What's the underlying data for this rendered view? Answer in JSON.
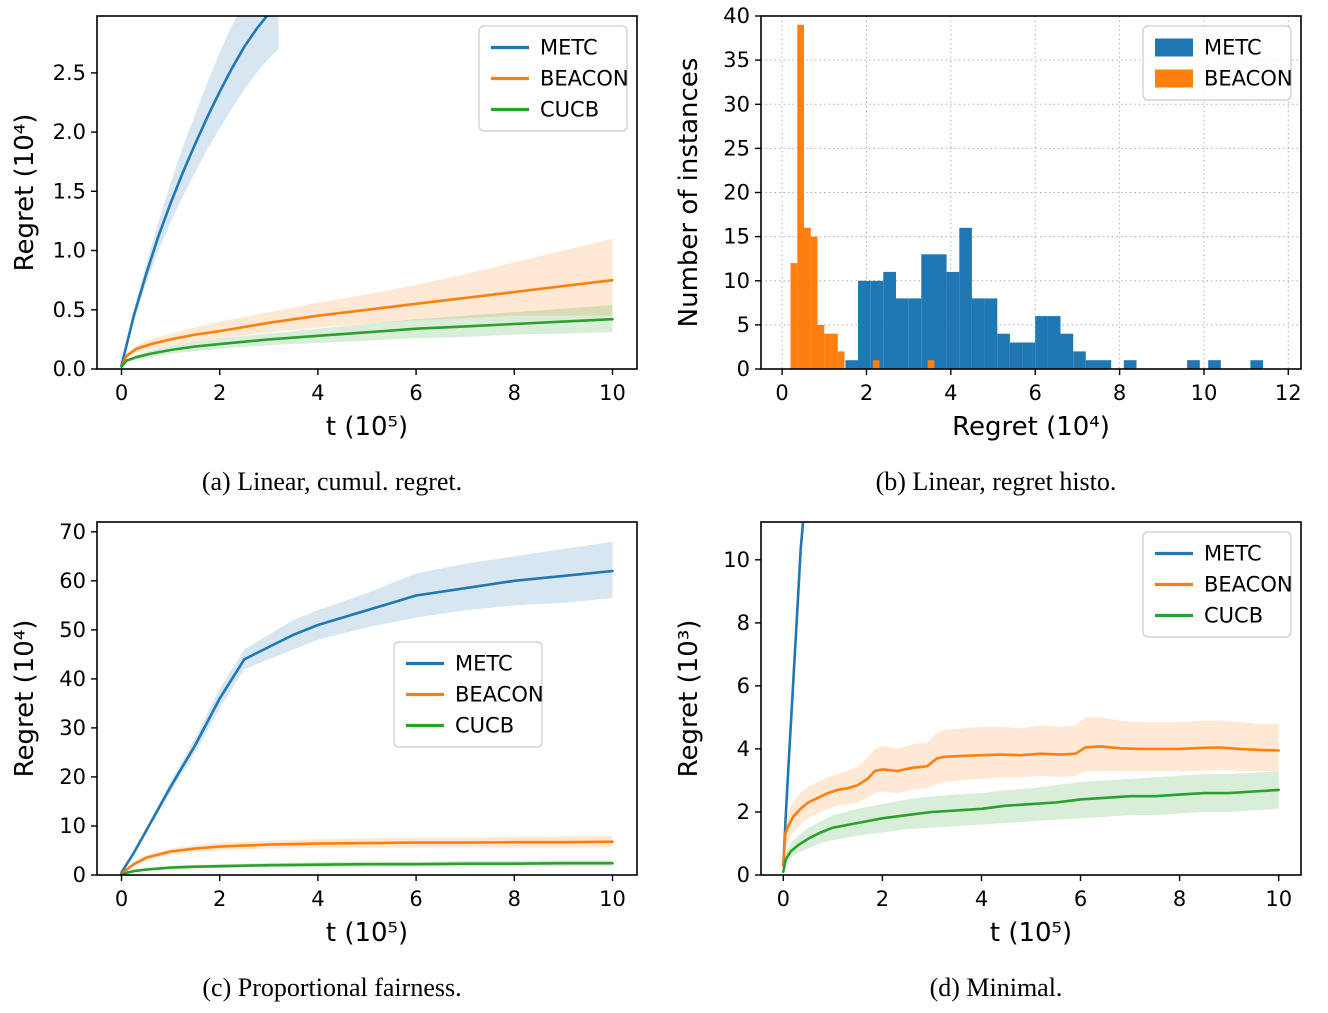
{
  "colors": {
    "METC": "#1f77b4",
    "BEACON": "#ff7f0e",
    "CUCB": "#2ca02c"
  },
  "figures": [
    {
      "key": "a",
      "caption": "(a)  Linear, cumul. regret."
    },
    {
      "key": "b",
      "caption": "(b)  Linear, regret histo."
    },
    {
      "key": "c",
      "caption": "(c)  Proportional fairness."
    },
    {
      "key": "d",
      "caption": "(d)  Minimal."
    }
  ],
  "chart_data": [
    {
      "id": "chart-a",
      "type": "line",
      "title": "",
      "xlabel": "t (10⁵)",
      "ylabel": "Regret (10⁴)",
      "xlim": [
        -0.5,
        10.5
      ],
      "ylim": [
        0,
        2.98
      ],
      "grid": false,
      "xticks": {
        "values": [
          0,
          2,
          4,
          6,
          8,
          10
        ],
        "labels": [
          "0",
          "2",
          "4",
          "6",
          "8",
          "10"
        ]
      },
      "yticks": {
        "values": [
          0,
          0.5,
          1,
          1.5,
          2,
          2.5
        ],
        "labels": [
          "0.0",
          "0.5",
          "1.0",
          "1.5",
          "2.0",
          "2.5"
        ]
      },
      "legend": {
        "entries": [
          "METC",
          "BEACON",
          "CUCB"
        ],
        "marker": "line",
        "anchor": "ne"
      },
      "series": [
        {
          "name": "METC",
          "color_key": "METC",
          "x": [
            0,
            0.1,
            0.25,
            0.5,
            0.75,
            1,
            1.25,
            1.5,
            1.75,
            2,
            2.25,
            2.5,
            2.75,
            3,
            3.2
          ],
          "y": [
            0.03,
            0.2,
            0.45,
            0.8,
            1.12,
            1.4,
            1.66,
            1.9,
            2.13,
            2.34,
            2.54,
            2.72,
            2.87,
            3.0,
            3.08
          ],
          "band": {
            "lo": [
              0.03,
              0.18,
              0.4,
              0.72,
              1.0,
              1.24,
              1.46,
              1.66,
              1.86,
              2.03,
              2.2,
              2.36,
              2.5,
              2.62,
              2.7
            ],
            "hi": [
              0.03,
              0.22,
              0.5,
              0.88,
              1.24,
              1.57,
              1.88,
              2.15,
              2.42,
              2.67,
              2.9,
              3.08,
              3.22,
              3.36,
              3.44
            ]
          }
        },
        {
          "name": "BEACON",
          "color_key": "BEACON",
          "x": [
            0,
            0.1,
            0.3,
            0.6,
            1,
            1.5,
            2,
            3,
            4,
            5,
            6,
            7,
            8,
            9,
            10
          ],
          "y": [
            0.02,
            0.11,
            0.17,
            0.21,
            0.25,
            0.29,
            0.32,
            0.39,
            0.45,
            0.5,
            0.55,
            0.6,
            0.65,
            0.7,
            0.75
          ],
          "band": {
            "lo": [
              0.02,
              0.09,
              0.14,
              0.17,
              0.2,
              0.23,
              0.26,
              0.31,
              0.35,
              0.38,
              0.41,
              0.43,
              0.45,
              0.45,
              0.45
            ],
            "hi": [
              0.02,
              0.13,
              0.2,
              0.25,
              0.3,
              0.35,
              0.4,
              0.48,
              0.56,
              0.63,
              0.71,
              0.8,
              0.9,
              1.0,
              1.1
            ]
          }
        },
        {
          "name": "CUCB",
          "color_key": "CUCB",
          "x": [
            0,
            0.1,
            0.3,
            0.6,
            1,
            1.5,
            2,
            3,
            4,
            5,
            6,
            7,
            8,
            9,
            10
          ],
          "y": [
            0.02,
            0.07,
            0.1,
            0.13,
            0.16,
            0.19,
            0.21,
            0.25,
            0.28,
            0.31,
            0.34,
            0.36,
            0.38,
            0.4,
            0.42
          ],
          "band": {
            "lo": [
              0.02,
              0.06,
              0.08,
              0.1,
              0.13,
              0.15,
              0.17,
              0.2,
              0.22,
              0.24,
              0.26,
              0.27,
              0.29,
              0.3,
              0.31
            ],
            "hi": [
              0.02,
              0.08,
              0.12,
              0.16,
              0.2,
              0.23,
              0.26,
              0.3,
              0.34,
              0.38,
              0.42,
              0.45,
              0.48,
              0.51,
              0.54
            ]
          }
        }
      ]
    },
    {
      "id": "chart-b",
      "type": "hist",
      "title": "",
      "xlabel": "Regret (10⁴)",
      "ylabel": "Number of instances",
      "xlim": [
        -0.5,
        12.3
      ],
      "ylim": [
        0,
        40
      ],
      "grid": true,
      "xticks": {
        "values": [
          0,
          2,
          4,
          6,
          8,
          10,
          12
        ],
        "labels": [
          "0",
          "2",
          "4",
          "6",
          "8",
          "10",
          "12"
        ]
      },
      "yticks": {
        "values": [
          0,
          5,
          10,
          15,
          20,
          25,
          30,
          35,
          40
        ],
        "labels": [
          "0",
          "5",
          "10",
          "15",
          "20",
          "25",
          "30",
          "35",
          "40"
        ]
      },
      "legend": {
        "entries": [
          "METC",
          "BEACON"
        ],
        "marker": "rect",
        "anchor": "ne"
      },
      "bars": [
        {
          "name": "METC",
          "color_key": "METC",
          "width": 0.3,
          "lefts": [
            1.5,
            1.8,
            2.1,
            2.4,
            2.7,
            3.0,
            3.3,
            3.6,
            3.9,
            4.2,
            4.5,
            4.8,
            5.1,
            5.4,
            5.7,
            6.0,
            6.3,
            6.6,
            6.9,
            7.2,
            7.5,
            8.1,
            9.6,
            10.1,
            11.1
          ],
          "heights": [
            1,
            10,
            10,
            11,
            8,
            8,
            13,
            13,
            11,
            16,
            8,
            8,
            4,
            3,
            3,
            6,
            6,
            4,
            2,
            1,
            1,
            1,
            1,
            1,
            1
          ]
        },
        {
          "name": "BEACON",
          "color_key": "BEACON",
          "width": 0.16,
          "lefts": [
            0.2,
            0.36,
            0.52,
            0.68,
            0.84,
            1.0,
            1.16,
            1.32,
            2.15,
            3.45
          ],
          "heights": [
            12,
            39,
            16,
            15,
            5,
            4,
            4,
            2,
            1,
            1
          ]
        }
      ]
    },
    {
      "id": "chart-c",
      "type": "line",
      "title": "",
      "xlabel": "t (10⁵)",
      "ylabel": "Regret (10⁴)",
      "xlim": [
        -0.5,
        10.5
      ],
      "ylim": [
        0,
        72
      ],
      "grid": false,
      "xticks": {
        "values": [
          0,
          2,
          4,
          6,
          8,
          10
        ],
        "labels": [
          "0",
          "2",
          "4",
          "6",
          "8",
          "10"
        ]
      },
      "yticks": {
        "values": [
          0,
          10,
          20,
          30,
          40,
          50,
          60,
          70
        ],
        "labels": [
          "0",
          "10",
          "20",
          "30",
          "40",
          "50",
          "60",
          "70"
        ]
      },
      "legend": {
        "entries": [
          "METC",
          "BEACON",
          "CUCB"
        ],
        "marker": "line",
        "anchor": "free",
        "fx": 0.55,
        "fy": 0.34
      },
      "series": [
        {
          "name": "METC",
          "color_key": "METC",
          "x": [
            0,
            0.25,
            0.5,
            0.75,
            1,
            1.5,
            2,
            2.5,
            3,
            3.5,
            4,
            5,
            6,
            7,
            8,
            9,
            10
          ],
          "y": [
            0.5,
            4.5,
            9,
            13.5,
            18,
            26.5,
            36,
            44,
            46.5,
            49,
            51,
            54,
            57,
            58.5,
            60,
            61,
            62
          ],
          "band": {
            "lo": [
              0.5,
              4.2,
              8.5,
              12.8,
              17,
              25,
              34,
              42,
              44,
              46,
              48,
              50.5,
              52.5,
              54,
              55,
              55.5,
              56.5
            ],
            "hi": [
              0.5,
              4.8,
              9.5,
              14.2,
              19,
              28,
              38,
              46,
              49,
              52,
              54,
              57.5,
              61.5,
              63.5,
              65,
              66.5,
              68
            ]
          }
        },
        {
          "name": "BEACON",
          "color_key": "BEACON",
          "x": [
            0,
            0.25,
            0.5,
            1,
            1.5,
            2,
            2.5,
            3,
            4,
            5,
            6,
            7,
            8,
            9,
            10
          ],
          "y": [
            0.3,
            2.2,
            3.5,
            4.8,
            5.4,
            5.8,
            6.0,
            6.2,
            6.4,
            6.5,
            6.6,
            6.6,
            6.7,
            6.7,
            6.8
          ],
          "band": {
            "lo": [
              0.3,
              1.9,
              3.0,
              4.2,
              4.7,
              5.0,
              5.2,
              5.4,
              5.5,
              5.5,
              5.6,
              5.6,
              5.6,
              5.6,
              5.6
            ],
            "hi": [
              0.3,
              2.5,
              4.0,
              5.4,
              6.1,
              6.6,
              6.8,
              7.0,
              7.3,
              7.5,
              7.6,
              7.6,
              7.8,
              7.9,
              8.0
            ]
          }
        },
        {
          "name": "CUCB",
          "color_key": "CUCB",
          "x": [
            0,
            0.25,
            0.5,
            1,
            1.5,
            2,
            2.5,
            3,
            4,
            5,
            6,
            7,
            8,
            9,
            10
          ],
          "y": [
            0.2,
            0.8,
            1.1,
            1.5,
            1.7,
            1.8,
            1.9,
            2.0,
            2.1,
            2.2,
            2.2,
            2.3,
            2.3,
            2.4,
            2.4
          ],
          "band": {
            "lo": [
              0.2,
              0.6,
              0.85,
              1.15,
              1.3,
              1.4,
              1.5,
              1.55,
              1.6,
              1.65,
              1.7,
              1.75,
              1.75,
              1.8,
              1.8
            ],
            "hi": [
              0.2,
              1.0,
              1.35,
              1.85,
              2.1,
              2.2,
              2.3,
              2.45,
              2.6,
              2.75,
              2.7,
              2.85,
              2.85,
              3.0,
              3.0
            ]
          }
        }
      ]
    },
    {
      "id": "chart-d",
      "type": "line",
      "title": "",
      "xlabel": "t (10⁵)",
      "ylabel": "Regret (10³)",
      "xlim": [
        -0.45,
        10.45
      ],
      "ylim": [
        0,
        11.2
      ],
      "grid": false,
      "xticks": {
        "values": [
          0,
          2,
          4,
          6,
          8,
          10
        ],
        "labels": [
          "0",
          "2",
          "4",
          "6",
          "8",
          "10"
        ]
      },
      "yticks": {
        "values": [
          0,
          2,
          4,
          6,
          8,
          10
        ],
        "labels": [
          "0",
          "2",
          "4",
          "6",
          "8",
          "10"
        ]
      },
      "legend": {
        "entries": [
          "METC",
          "BEACON",
          "CUCB"
        ],
        "marker": "line",
        "anchor": "ne"
      },
      "series": [
        {
          "name": "METC",
          "color_key": "METC",
          "x": [
            0,
            0.05,
            0.1,
            0.15,
            0.2,
            0.25,
            0.3,
            0.35,
            0.42
          ],
          "y": [
            0.3,
            1.9,
            3.3,
            4.7,
            6.1,
            7.5,
            8.9,
            10.3,
            11.6
          ]
        },
        {
          "name": "BEACON",
          "color_key": "BEACON",
          "x": [
            0,
            0.04,
            0.1,
            0.2,
            0.35,
            0.5,
            0.7,
            0.9,
            1.1,
            1.3,
            1.5,
            1.7,
            1.85,
            2.0,
            2.3,
            2.6,
            2.9,
            3.1,
            3.25,
            3.6,
            4.0,
            4.4,
            4.8,
            5.2,
            5.6,
            5.9,
            6.1,
            6.4,
            6.8,
            7.2,
            7.6,
            8.0,
            8.4,
            8.8,
            9.2,
            9.6,
            10
          ],
          "y": [
            0.3,
            1.3,
            1.55,
            1.85,
            2.1,
            2.3,
            2.45,
            2.6,
            2.7,
            2.75,
            2.85,
            3.05,
            3.3,
            3.35,
            3.3,
            3.4,
            3.45,
            3.7,
            3.75,
            3.78,
            3.8,
            3.82,
            3.8,
            3.85,
            3.82,
            3.85,
            4.05,
            4.08,
            4.02,
            4.0,
            4.0,
            4.0,
            4.03,
            4.05,
            4.0,
            3.97,
            3.95
          ],
          "band": {
            "lo": [
              0.3,
              0.9,
              1.1,
              1.35,
              1.6,
              1.8,
              1.95,
              2.1,
              2.2,
              2.25,
              2.3,
              2.45,
              2.6,
              2.65,
              2.6,
              2.7,
              2.75,
              2.9,
              2.95,
              3.0,
              3.05,
              3.1,
              3.1,
              3.15,
              3.1,
              3.15,
              3.3,
              3.3,
              3.3,
              3.3,
              3.3,
              3.3,
              3.3,
              3.35,
              3.3,
              3.3,
              3.3
            ],
            "hi": [
              0.3,
              1.7,
              2.0,
              2.35,
              2.6,
              2.8,
              2.95,
              3.1,
              3.2,
              3.3,
              3.45,
              3.7,
              4.0,
              4.1,
              4.0,
              4.15,
              4.2,
              4.5,
              4.6,
              4.65,
              4.7,
              4.7,
              4.65,
              4.75,
              4.7,
              4.75,
              5.0,
              5.0,
              4.9,
              4.85,
              4.85,
              4.85,
              4.9,
              4.9,
              4.85,
              4.8,
              4.8
            ]
          }
        },
        {
          "name": "CUCB",
          "color_key": "CUCB",
          "x": [
            0,
            0.05,
            0.15,
            0.3,
            0.5,
            0.75,
            1,
            1.5,
            2,
            2.5,
            3,
            3.5,
            4,
            4.5,
            5,
            5.5,
            6,
            6.5,
            7,
            7.5,
            8,
            8.5,
            9,
            9.5,
            10
          ],
          "y": [
            0.1,
            0.5,
            0.75,
            0.95,
            1.15,
            1.35,
            1.5,
            1.65,
            1.8,
            1.9,
            2.0,
            2.05,
            2.1,
            2.2,
            2.25,
            2.3,
            2.4,
            2.45,
            2.5,
            2.5,
            2.55,
            2.6,
            2.6,
            2.65,
            2.7
          ],
          "band": {
            "lo": [
              0.1,
              0.35,
              0.55,
              0.7,
              0.85,
              1.0,
              1.1,
              1.25,
              1.35,
              1.45,
              1.5,
              1.55,
              1.6,
              1.65,
              1.7,
              1.75,
              1.8,
              1.85,
              1.9,
              1.9,
              1.95,
              2.0,
              2.0,
              2.05,
              2.1
            ],
            "hi": [
              0.1,
              0.7,
              1.0,
              1.25,
              1.5,
              1.7,
              1.9,
              2.1,
              2.25,
              2.4,
              2.5,
              2.55,
              2.6,
              2.7,
              2.75,
              2.85,
              2.95,
              3.0,
              3.05,
              3.1,
              3.15,
              3.2,
              3.2,
              3.25,
              3.3
            ]
          }
        }
      ]
    }
  ]
}
